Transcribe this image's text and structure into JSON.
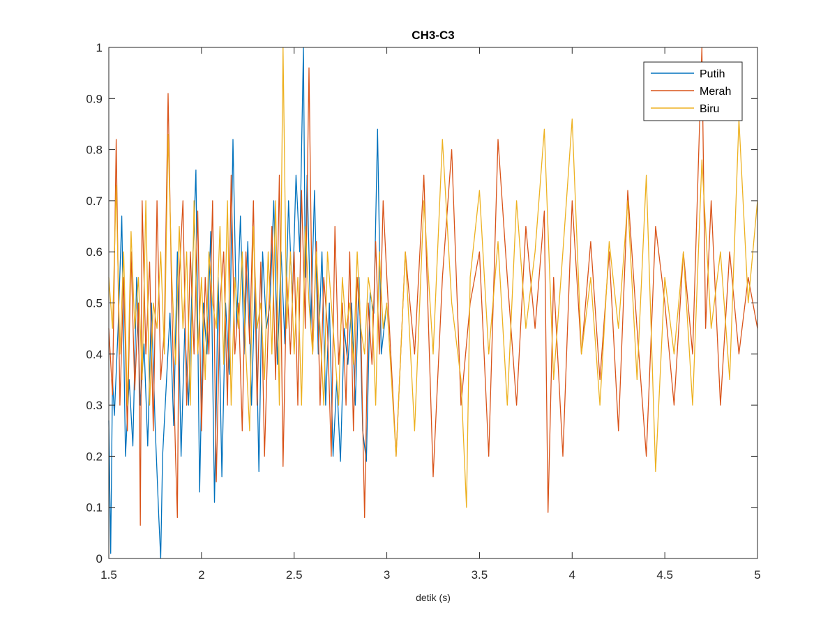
{
  "chart_data": {
    "type": "line",
    "title": "CH3-C3",
    "xlabel": "detik (s)",
    "ylabel": "",
    "xlim": [
      1.5,
      5
    ],
    "ylim": [
      0,
      1
    ],
    "xticks": [
      1.5,
      2,
      2.5,
      3,
      3.5,
      4,
      4.5,
      5
    ],
    "xtick_labels": [
      "1.5",
      "2",
      "2.5",
      "3",
      "3.5",
      "4",
      "4.5",
      "5"
    ],
    "yticks": [
      0,
      0.1,
      0.2,
      0.3,
      0.4,
      0.5,
      0.6,
      0.7,
      0.8,
      0.9,
      1
    ],
    "ytick_labels": [
      "0",
      "0.1",
      "0.2",
      "0.3",
      "0.4",
      "0.5",
      "0.6",
      "0.7",
      "0.8",
      "0.9",
      "1"
    ],
    "grid": false,
    "legend_position": "top-right",
    "series": [
      {
        "name": "Putih",
        "color": "#0072BD",
        "x": [
          1.5,
          1.51,
          1.52,
          1.53,
          1.55,
          1.57,
          1.59,
          1.61,
          1.63,
          1.65,
          1.67,
          1.69,
          1.71,
          1.73,
          1.75,
          1.77,
          1.78,
          1.79,
          1.81,
          1.83,
          1.85,
          1.87,
          1.89,
          1.91,
          1.93,
          1.95,
          1.97,
          1.99,
          2.01,
          2.03,
          2.05,
          2.07,
          2.08,
          2.09,
          2.11,
          2.13,
          2.15,
          2.17,
          2.19,
          2.21,
          2.23,
          2.25,
          2.27,
          2.29,
          2.31,
          2.33,
          2.35,
          2.37,
          2.39,
          2.41,
          2.43,
          2.45,
          2.47,
          2.49,
          2.51,
          2.53,
          2.55,
          2.56,
          2.57,
          2.59,
          2.61,
          2.63,
          2.65,
          2.67,
          2.69,
          2.71,
          2.73,
          2.75,
          2.77,
          2.79,
          2.81,
          2.83,
          2.85,
          2.87,
          2.89,
          2.91,
          2.93,
          2.95,
          2.97,
          3.0
        ],
        "values": [
          0.27,
          0.01,
          0.35,
          0.28,
          0.45,
          0.67,
          0.2,
          0.35,
          0.22,
          0.55,
          0.3,
          0.42,
          0.22,
          0.5,
          0.26,
          0.08,
          0.0,
          0.2,
          0.34,
          0.48,
          0.26,
          0.6,
          0.2,
          0.45,
          0.3,
          0.55,
          0.76,
          0.13,
          0.5,
          0.4,
          0.64,
          0.11,
          0.3,
          0.55,
          0.16,
          0.5,
          0.36,
          0.82,
          0.45,
          0.67,
          0.4,
          0.62,
          0.3,
          0.55,
          0.17,
          0.6,
          0.45,
          0.5,
          0.7,
          0.38,
          0.6,
          0.42,
          0.7,
          0.5,
          0.75,
          0.6,
          1.0,
          0.55,
          0.75,
          0.45,
          0.72,
          0.4,
          0.6,
          0.3,
          0.5,
          0.2,
          0.35,
          0.19,
          0.45,
          0.38,
          0.5,
          0.3,
          0.55,
          0.25,
          0.19,
          0.52,
          0.48,
          0.84,
          0.4,
          0.5
        ]
      },
      {
        "name": "Merah",
        "color": "#D95319",
        "x": [
          1.5,
          1.52,
          1.54,
          1.56,
          1.58,
          1.6,
          1.62,
          1.64,
          1.66,
          1.67,
          1.68,
          1.7,
          1.72,
          1.74,
          1.76,
          1.78,
          1.8,
          1.82,
          1.84,
          1.86,
          1.87,
          1.88,
          1.9,
          1.92,
          1.94,
          1.96,
          1.98,
          2.0,
          2.02,
          2.04,
          2.06,
          2.08,
          2.1,
          2.12,
          2.14,
          2.16,
          2.18,
          2.2,
          2.22,
          2.24,
          2.26,
          2.28,
          2.3,
          2.32,
          2.34,
          2.36,
          2.38,
          2.4,
          2.42,
          2.44,
          2.46,
          2.48,
          2.5,
          2.52,
          2.54,
          2.56,
          2.58,
          2.6,
          2.62,
          2.64,
          2.66,
          2.68,
          2.7,
          2.72,
          2.74,
          2.76,
          2.78,
          2.8,
          2.82,
          2.84,
          2.86,
          2.88,
          2.9,
          2.92,
          2.94,
          2.96,
          2.98,
          3.0,
          3.05,
          3.1,
          3.15,
          3.2,
          3.25,
          3.3,
          3.35,
          3.4,
          3.45,
          3.5,
          3.55,
          3.6,
          3.65,
          3.7,
          3.75,
          3.8,
          3.85,
          3.87,
          3.9,
          3.95,
          4.0,
          4.05,
          4.1,
          4.15,
          4.2,
          4.25,
          4.3,
          4.35,
          4.4,
          4.45,
          4.5,
          4.55,
          4.6,
          4.65,
          4.7,
          4.72,
          4.75,
          4.8,
          4.85,
          4.9,
          4.95,
          5.0
        ],
        "values": [
          0.45,
          0.32,
          0.82,
          0.3,
          0.55,
          0.25,
          0.6,
          0.33,
          0.5,
          0.065,
          0.7,
          0.4,
          0.58,
          0.25,
          0.7,
          0.35,
          0.45,
          0.91,
          0.5,
          0.2,
          0.08,
          0.55,
          0.7,
          0.3,
          0.6,
          0.4,
          0.68,
          0.25,
          0.55,
          0.4,
          0.7,
          0.15,
          0.5,
          0.6,
          0.3,
          0.75,
          0.4,
          0.5,
          0.25,
          0.6,
          0.42,
          0.7,
          0.3,
          0.58,
          0.2,
          0.45,
          0.65,
          0.35,
          0.75,
          0.18,
          0.55,
          0.4,
          0.6,
          0.3,
          0.72,
          0.45,
          0.96,
          0.4,
          0.62,
          0.3,
          0.55,
          0.45,
          0.2,
          0.65,
          0.38,
          0.5,
          0.3,
          0.6,
          0.25,
          0.55,
          0.45,
          0.08,
          0.5,
          0.38,
          0.62,
          0.4,
          0.7,
          0.55,
          0.2,
          0.6,
          0.4,
          0.75,
          0.16,
          0.55,
          0.8,
          0.3,
          0.5,
          0.6,
          0.2,
          0.82,
          0.55,
          0.3,
          0.65,
          0.45,
          0.68,
          0.09,
          0.55,
          0.2,
          0.7,
          0.4,
          0.62,
          0.35,
          0.6,
          0.25,
          0.72,
          0.45,
          0.2,
          0.65,
          0.5,
          0.3,
          0.6,
          0.4,
          1.0,
          0.45,
          0.7,
          0.3,
          0.6,
          0.4,
          0.55,
          0.45
        ]
      },
      {
        "name": "Biru",
        "color": "#EDB120",
        "x": [
          1.5,
          1.52,
          1.54,
          1.56,
          1.58,
          1.6,
          1.62,
          1.64,
          1.66,
          1.68,
          1.7,
          1.72,
          1.74,
          1.76,
          1.78,
          1.8,
          1.82,
          1.84,
          1.86,
          1.88,
          1.9,
          1.92,
          1.94,
          1.96,
          1.98,
          2.0,
          2.02,
          2.04,
          2.06,
          2.08,
          2.1,
          2.12,
          2.14,
          2.16,
          2.18,
          2.2,
          2.22,
          2.24,
          2.26,
          2.28,
          2.3,
          2.32,
          2.34,
          2.36,
          2.38,
          2.4,
          2.42,
          2.44,
          2.46,
          2.48,
          2.5,
          2.52,
          2.54,
          2.56,
          2.58,
          2.6,
          2.62,
          2.64,
          2.66,
          2.68,
          2.7,
          2.72,
          2.74,
          2.76,
          2.78,
          2.8,
          2.82,
          2.84,
          2.86,
          2.88,
          2.9,
          2.92,
          2.94,
          2.96,
          2.98,
          3.0,
          3.05,
          3.1,
          3.15,
          3.2,
          3.25,
          3.3,
          3.35,
          3.4,
          3.43,
          3.45,
          3.5,
          3.55,
          3.6,
          3.65,
          3.7,
          3.75,
          3.8,
          3.85,
          3.9,
          3.95,
          4.0,
          4.05,
          4.1,
          4.15,
          4.2,
          4.25,
          4.3,
          4.35,
          4.4,
          4.45,
          4.5,
          4.55,
          4.6,
          4.65,
          4.7,
          4.75,
          4.8,
          4.85,
          4.9,
          4.95,
          5.0
        ],
        "values": [
          0.55,
          0.45,
          0.73,
          0.4,
          0.6,
          0.3,
          0.64,
          0.45,
          0.55,
          0.35,
          0.7,
          0.3,
          0.5,
          0.45,
          0.6,
          0.4,
          0.83,
          0.55,
          0.38,
          0.65,
          0.45,
          0.6,
          0.3,
          0.7,
          0.4,
          0.55,
          0.35,
          0.6,
          0.5,
          0.45,
          0.65,
          0.38,
          0.7,
          0.3,
          0.55,
          0.45,
          0.6,
          0.4,
          0.25,
          0.65,
          0.45,
          0.5,
          0.35,
          0.6,
          0.4,
          0.7,
          0.3,
          1.0,
          0.45,
          0.6,
          0.4,
          0.55,
          0.3,
          0.65,
          0.5,
          0.4,
          0.6,
          0.45,
          0.3,
          0.6,
          0.5,
          0.4,
          0.3,
          0.55,
          0.45,
          0.5,
          0.38,
          0.6,
          0.45,
          0.4,
          0.55,
          0.5,
          0.3,
          0.6,
          0.45,
          0.5,
          0.2,
          0.6,
          0.25,
          0.7,
          0.4,
          0.82,
          0.5,
          0.35,
          0.1,
          0.55,
          0.72,
          0.4,
          0.62,
          0.3,
          0.7,
          0.45,
          0.6,
          0.84,
          0.35,
          0.6,
          0.86,
          0.4,
          0.55,
          0.3,
          0.62,
          0.45,
          0.7,
          0.35,
          0.75,
          0.17,
          0.55,
          0.4,
          0.6,
          0.3,
          0.78,
          0.45,
          0.6,
          0.35,
          0.86,
          0.5,
          0.7
        ]
      }
    ]
  }
}
